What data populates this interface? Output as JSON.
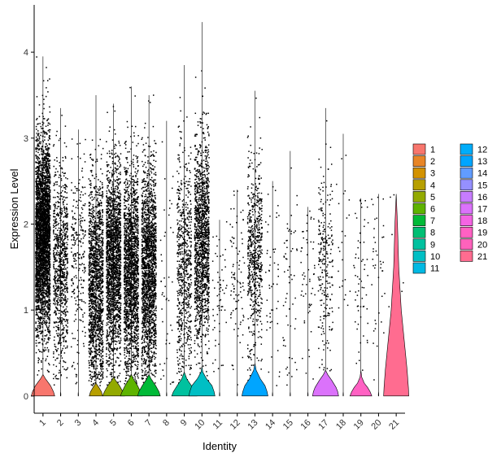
{
  "chart_data": {
    "type": "violin",
    "xlabel": "Identity",
    "ylabel": "Expression Level",
    "categories": [
      "1",
      "2",
      "3",
      "4",
      "5",
      "6",
      "7",
      "8",
      "9",
      "10",
      "11",
      "12",
      "13",
      "14",
      "15",
      "16",
      "17",
      "18",
      "19",
      "20",
      "21"
    ],
    "yticks": [
      0,
      1,
      2,
      3,
      4
    ],
    "ylim": [
      -0.2,
      4.55
    ],
    "colors": [
      "#F8766D",
      "#E88526",
      "#D39200",
      "#B79F00",
      "#93AA00",
      "#5EB300",
      "#00BA38",
      "#00BF74",
      "#00C19F",
      "#00BFC4",
      "#00B9E3",
      "#00ADFA",
      "#00A5FF",
      "#619CFF",
      "#9590FF",
      "#C77CFF",
      "#DB72FB",
      "#F564E3",
      "#FF61C3",
      "#FF62BC",
      "#FF6C90"
    ],
    "violin_shape": [
      [
        [
          0,
          0.28
        ],
        [
          0.05,
          0.25
        ],
        [
          0.12,
          0.18
        ],
        [
          0.2,
          0.06
        ],
        [
          0.25,
          0
        ]
      ],
      [
        [
          0,
          0.004
        ],
        [
          0.02,
          0.006
        ],
        [
          0.05,
          0
        ]
      ],
      [
        [
          0,
          0.004
        ],
        [
          0.02,
          0.005
        ],
        [
          0.05,
          0
        ]
      ],
      [
        [
          0,
          0.16
        ],
        [
          0.05,
          0.13
        ],
        [
          0.1,
          0.07
        ],
        [
          0.15,
          0
        ]
      ],
      [
        [
          0,
          0.26
        ],
        [
          0.05,
          0.22
        ],
        [
          0.12,
          0.14
        ],
        [
          0.18,
          0.05
        ],
        [
          0.22,
          0
        ]
      ],
      [
        [
          0,
          0.26
        ],
        [
          0.05,
          0.22
        ],
        [
          0.12,
          0.15
        ],
        [
          0.2,
          0.05
        ],
        [
          0.25,
          0
        ]
      ],
      [
        [
          0,
          0.27
        ],
        [
          0.05,
          0.24
        ],
        [
          0.12,
          0.16
        ],
        [
          0.2,
          0.05
        ],
        [
          0.25,
          0
        ]
      ],
      [
        [
          0,
          0.004
        ],
        [
          0.02,
          0.005
        ],
        [
          0.05,
          0
        ]
      ],
      [
        [
          0,
          0.3
        ],
        [
          0.05,
          0.26
        ],
        [
          0.12,
          0.17
        ],
        [
          0.2,
          0.06
        ],
        [
          0.28,
          0
        ]
      ],
      [
        [
          0,
          0.31
        ],
        [
          0.05,
          0.29
        ],
        [
          0.12,
          0.24
        ],
        [
          0.2,
          0.11
        ],
        [
          0.28,
          0.02
        ],
        [
          0.35,
          0
        ]
      ],
      [
        [
          0,
          0.004
        ],
        [
          0.02,
          0.005
        ],
        [
          0.05,
          0
        ]
      ],
      [
        [
          0,
          0.004
        ],
        [
          0.02,
          0.005
        ],
        [
          0.05,
          0
        ]
      ],
      [
        [
          0,
          0.31
        ],
        [
          0.05,
          0.29
        ],
        [
          0.12,
          0.24
        ],
        [
          0.2,
          0.13
        ],
        [
          0.3,
          0.03
        ],
        [
          0.38,
          0
        ]
      ],
      [
        [
          0,
          0.004
        ],
        [
          0.02,
          0.005
        ],
        [
          0.05,
          0
        ]
      ],
      [
        [
          0,
          0.004
        ],
        [
          0.02,
          0.005
        ],
        [
          0.05,
          0
        ]
      ],
      [
        [
          0,
          0.004
        ],
        [
          0.02,
          0.005
        ],
        [
          0.05,
          0
        ]
      ],
      [
        [
          0,
          0.31
        ],
        [
          0.05,
          0.29
        ],
        [
          0.1,
          0.25
        ],
        [
          0.18,
          0.15
        ],
        [
          0.25,
          0.05
        ],
        [
          0.3,
          0
        ]
      ],
      [
        [
          0,
          0.004
        ],
        [
          0.02,
          0.005
        ],
        [
          0.05,
          0
        ]
      ],
      [
        [
          0,
          0.26
        ],
        [
          0.05,
          0.22
        ],
        [
          0.1,
          0.16
        ],
        [
          0.15,
          0.08
        ],
        [
          0.22,
          0.02
        ],
        [
          0.3,
          0
        ]
      ],
      [
        [
          0,
          0.004
        ],
        [
          0.02,
          0.005
        ],
        [
          0.05,
          0
        ]
      ],
      [
        [
          0,
          0.3
        ],
        [
          0.1,
          0.29
        ],
        [
          0.3,
          0.26
        ],
        [
          0.6,
          0.2
        ],
        [
          1.0,
          0.12
        ],
        [
          1.5,
          0.06
        ],
        [
          2.0,
          0.03
        ],
        [
          2.35,
          0
        ]
      ]
    ],
    "violin_max": [
      3.95,
      3.35,
      3.1,
      3.5,
      3.4,
      3.6,
      3.5,
      3.2,
      3.85,
      4.35,
      2.05,
      2.4,
      3.55,
      2.5,
      2.85,
      2.2,
      3.35,
      3.05,
      2.3,
      2.35,
      2.35
    ],
    "point_counts": [
      3500,
      900,
      250,
      1600,
      2000,
      1900,
      1900,
      45,
      700,
      1500,
      60,
      90,
      650,
      50,
      60,
      55,
      250,
      25,
      60,
      40,
      10
    ],
    "point_center": [
      1.85,
      1.5,
      1.6,
      1.3,
      1.55,
      1.45,
      1.45,
      1.3,
      1.5,
      1.8,
      1.1,
      1.5,
      1.6,
      1.3,
      1.2,
      1.4,
      1.6,
      1.7,
      1.3,
      1.5,
      1.5
    ],
    "point_spread": [
      0.55,
      0.55,
      0.6,
      0.6,
      0.55,
      0.6,
      0.6,
      0.7,
      0.65,
      0.6,
      0.5,
      0.5,
      0.55,
      0.6,
      0.6,
      0.55,
      0.6,
      0.6,
      0.6,
      0.6,
      0.8
    ],
    "legend": {
      "position": "right",
      "columns": 2,
      "entries": [
        "1",
        "2",
        "3",
        "4",
        "5",
        "6",
        "7",
        "8",
        "9",
        "10",
        "11",
        "12",
        "13",
        "14",
        "15",
        "16",
        "17",
        "18",
        "19",
        "20",
        "21"
      ]
    }
  }
}
